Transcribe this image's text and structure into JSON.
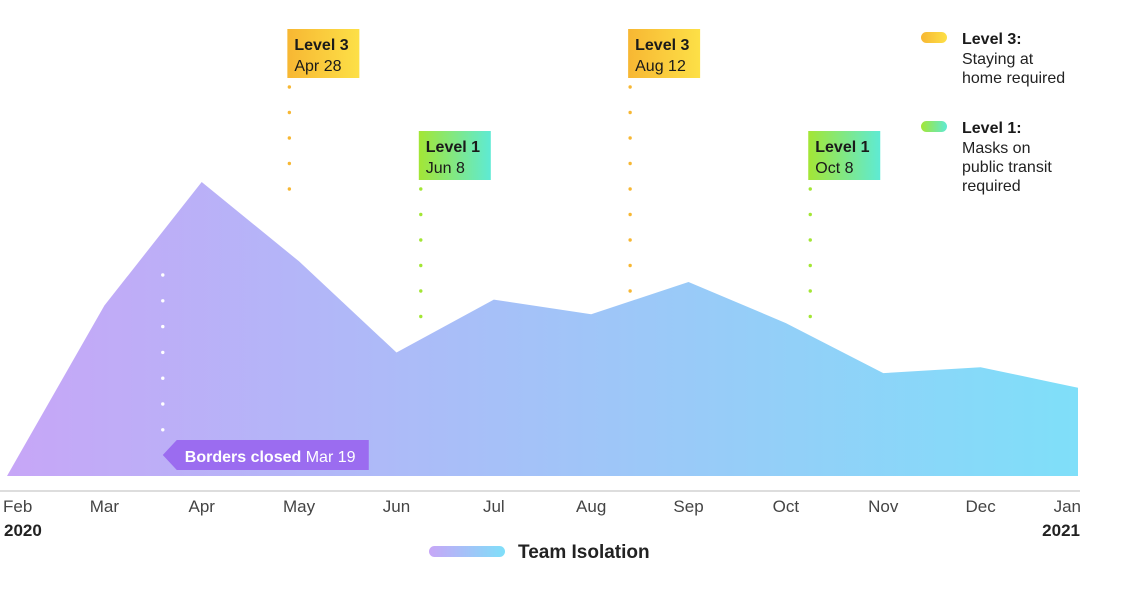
{
  "chart_data": {
    "type": "area",
    "title": "",
    "x": [
      "Feb",
      "Mar",
      "Apr",
      "May",
      "Jun",
      "Jul",
      "Aug",
      "Sep",
      "Oct",
      "Nov",
      "Dec",
      "Jan"
    ],
    "years": {
      "start": "2020",
      "end": "2021"
    },
    "series": [
      {
        "name": "Team Isolation",
        "values": [
          0,
          58,
          100,
          73,
          42,
          60,
          55,
          66,
          52,
          35,
          37,
          30
        ]
      }
    ],
    "ylim": [
      0,
      100
    ],
    "xlabel": "",
    "ylabel": "",
    "grid": false,
    "gradient_colors": [
      "#c7a6f7",
      "#7fdff9"
    ],
    "events": [
      {
        "id": "apr28",
        "level_label": "Level 3",
        "date_label": "Apr 28",
        "month_pos": 2.9,
        "level": 3
      },
      {
        "id": "jun8",
        "level_label": "Level 1",
        "date_label": "Jun 8",
        "month_pos": 4.25,
        "level": 1
      },
      {
        "id": "aug12",
        "level_label": "Level 3",
        "date_label": "Aug 12",
        "month_pos": 6.4,
        "level": 3
      },
      {
        "id": "oct8",
        "level_label": "Level 1",
        "date_label": "Oct 8",
        "month_pos": 8.25,
        "level": 1
      }
    ],
    "callout": {
      "strong": "Borders closed",
      "light": "Mar 19",
      "month_pos": 1.6,
      "color": "#9b6cf0"
    },
    "legend": [
      {
        "title": "Level 3:",
        "lines": [
          "Staying at",
          "home required"
        ],
        "colors": [
          "#f7b733",
          "#fde047"
        ]
      },
      {
        "title": "Level 1:",
        "lines": [
          "Masks on",
          "public transit",
          "required"
        ],
        "colors": [
          "#a3e635",
          "#5eead4"
        ]
      }
    ],
    "level_colors": {
      "3": [
        "#f7b733",
        "#fde047"
      ],
      "1": [
        "#a3e635",
        "#5eead4"
      ]
    },
    "bottom_legend": {
      "label": "Team Isolation",
      "colors": [
        "#c7a6f7",
        "#7fdff9"
      ]
    }
  }
}
